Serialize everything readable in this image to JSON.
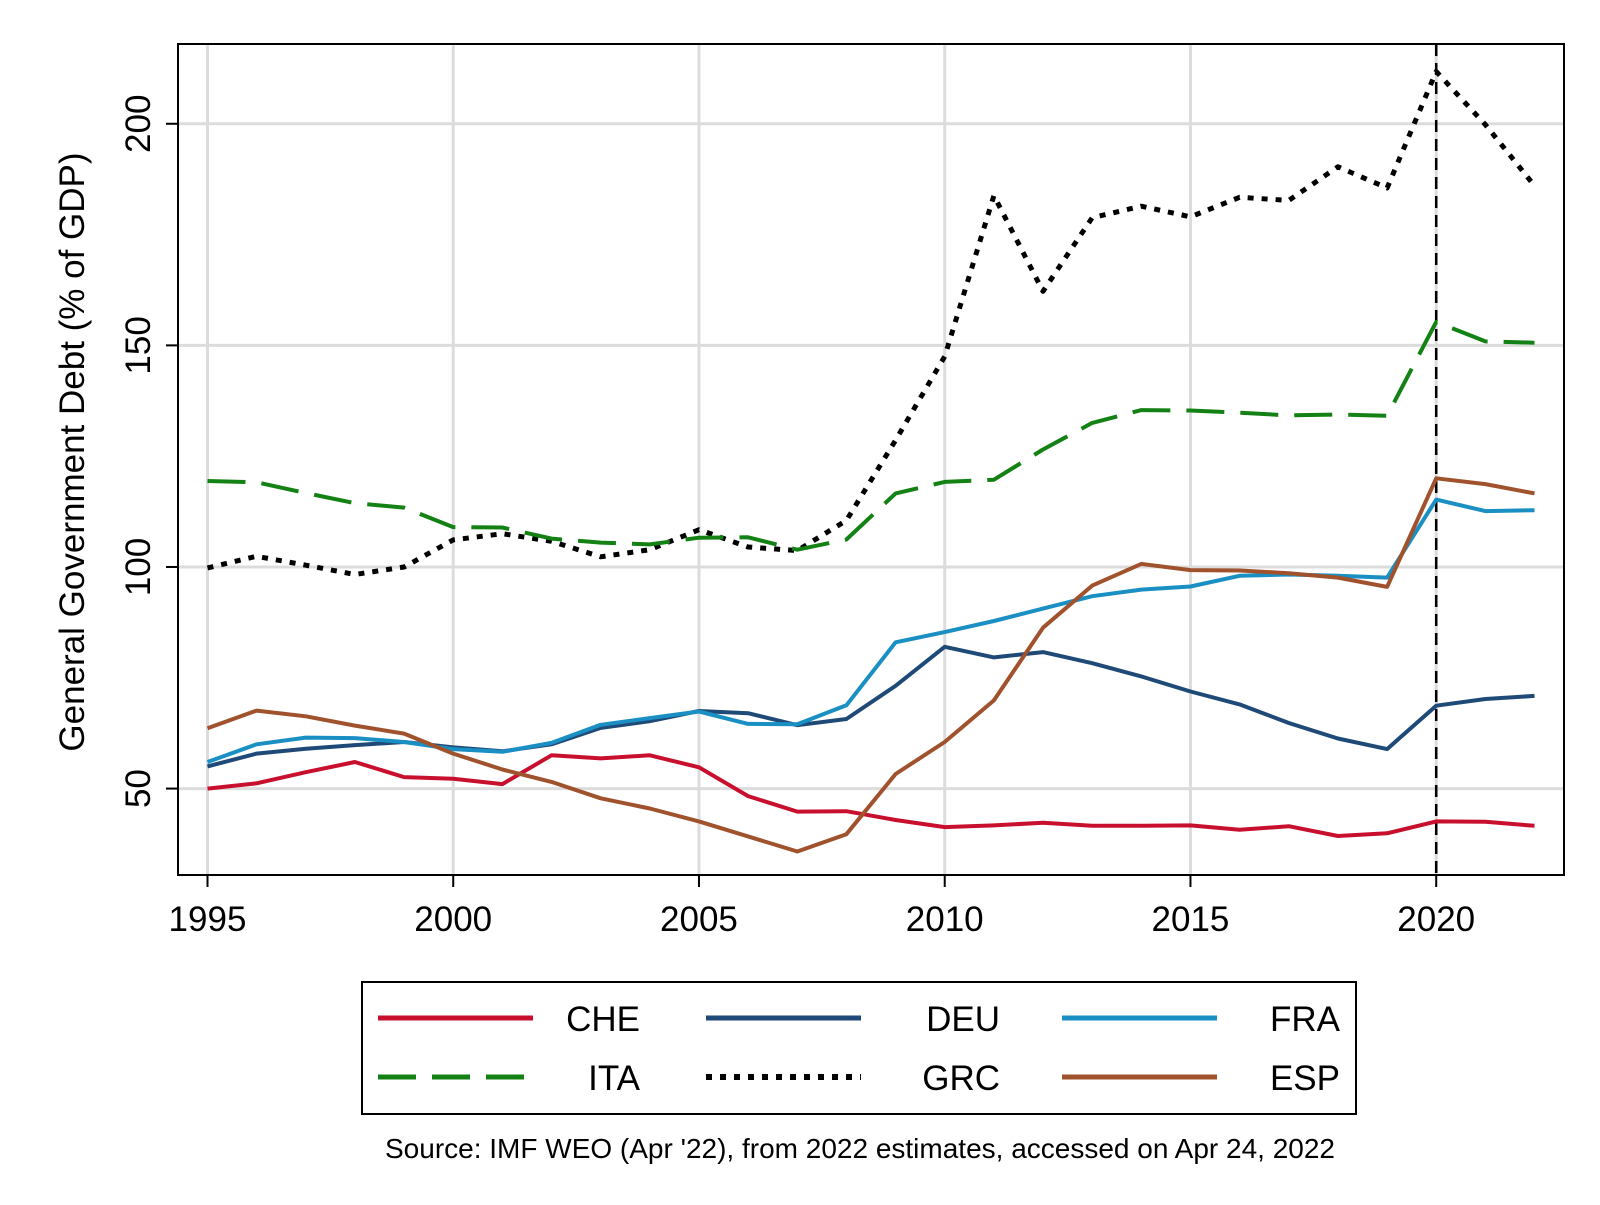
{
  "chart_data": {
    "type": "line",
    "title": "",
    "xlabel": "",
    "ylabel": "General Government Debt (% of GDP)",
    "xlim": [
      1994.4,
      2022.6
    ],
    "ylim": [
      30.5,
      218
    ],
    "x_ticks": [
      "1995",
      "2000",
      "2005",
      "2010",
      "2015",
      "2020"
    ],
    "y_ticks": [
      "50",
      "100",
      "150",
      "200"
    ],
    "grid": true,
    "vertical_reference_line": {
      "x": 2020,
      "style": "dashed",
      "color": "#000000"
    },
    "legend": {
      "placement": "bottom",
      "columns": 3
    },
    "source_note": "Source: IMF WEO (Apr '22), from 2022 estimates, accessed on Apr 24, 2022",
    "x": [
      1995,
      1996,
      1997,
      1998,
      1999,
      2000,
      2001,
      2002,
      2003,
      2004,
      2005,
      2006,
      2007,
      2008,
      2009,
      2010,
      2011,
      2012,
      2013,
      2014,
      2015,
      2016,
      2017,
      2018,
      2019,
      2020,
      2021,
      2022
    ],
    "series": [
      {
        "name": "CHE",
        "color": "#c8102e",
        "dash": "solid",
        "values": [
          50.0,
          51.2,
          53.7,
          56.0,
          52.6,
          52.2,
          51.0,
          57.5,
          56.8,
          57.5,
          54.8,
          48.3,
          44.8,
          44.9,
          42.9,
          41.3,
          41.7,
          42.3,
          41.6,
          41.6,
          41.7,
          40.7,
          41.5,
          39.3,
          39.9,
          42.6,
          42.5,
          41.6
        ]
      },
      {
        "name": "DEU",
        "color": "#1f4a78",
        "dash": "solid",
        "values": [
          55.0,
          57.9,
          59.0,
          59.8,
          60.5,
          59.3,
          58.4,
          60.0,
          63.7,
          65.2,
          67.5,
          67.0,
          64.3,
          65.7,
          73.2,
          82.0,
          79.6,
          80.8,
          78.3,
          75.3,
          71.9,
          69.0,
          64.8,
          61.3,
          58.9,
          68.7,
          70.2,
          70.9
        ]
      },
      {
        "name": "FRA",
        "color": "#1a8fc4",
        "dash": "solid",
        "values": [
          56.0,
          60.0,
          61.5,
          61.4,
          60.5,
          58.9,
          58.3,
          60.3,
          64.4,
          65.9,
          67.4,
          64.6,
          64.5,
          68.8,
          83.0,
          85.3,
          87.8,
          90.6,
          93.4,
          94.9,
          95.6,
          98.0,
          98.3,
          98.0,
          97.6,
          115.2,
          112.6,
          112.8
        ]
      },
      {
        "name": "ITA",
        "color": "#138113",
        "dash": "dashed",
        "values": [
          119.4,
          119.1,
          116.7,
          114.4,
          113.4,
          109.0,
          108.9,
          106.4,
          105.5,
          105.1,
          106.6,
          106.7,
          103.9,
          106.2,
          116.6,
          119.2,
          119.7,
          126.5,
          132.5,
          135.4,
          135.3,
          134.8,
          134.2,
          134.4,
          134.1,
          155.3,
          150.9,
          150.6
        ]
      },
      {
        "name": "GRC",
        "color": "#000000",
        "dash": "dotted",
        "values": [
          99.8,
          102.4,
          100.4,
          98.3,
          100.0,
          106.1,
          107.5,
          105.8,
          102.3,
          103.9,
          108.4,
          104.5,
          103.7,
          110.5,
          128.6,
          147.5,
          183.8,
          162.2,
          178.8,
          181.4,
          179.0,
          183.4,
          182.7,
          190.3,
          185.5,
          211.8,
          199.8,
          186.0
        ]
      },
      {
        "name": "ESP",
        "color": "#a0522d",
        "dash": "solid",
        "values": [
          63.6,
          67.6,
          66.3,
          64.2,
          62.4,
          57.9,
          54.3,
          51.5,
          47.8,
          45.5,
          42.6,
          39.2,
          35.8,
          39.7,
          53.3,
          60.5,
          69.9,
          86.3,
          95.8,
          100.7,
          99.3,
          99.2,
          98.6,
          97.6,
          95.5,
          120.0,
          118.7,
          116.6
        ]
      }
    ]
  }
}
